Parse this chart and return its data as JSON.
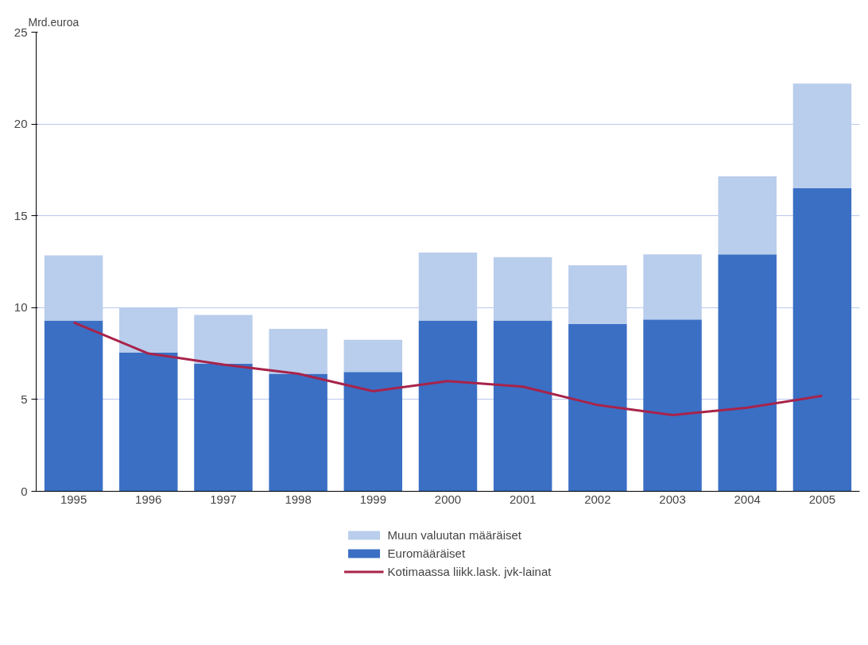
{
  "chart_data": {
    "type": "bar",
    "stacked": true,
    "ylabel": "Mrd.euroa",
    "categories": [
      "1995",
      "1996",
      "1997",
      "1998",
      "1999",
      "2000",
      "2001",
      "2002",
      "2003",
      "2004",
      "2005"
    ],
    "series": [
      {
        "name": "Euromääräiset",
        "color": "#3a6fc4",
        "values": [
          9.3,
          7.55,
          6.95,
          6.4,
          6.5,
          9.3,
          9.3,
          9.1,
          9.35,
          12.9,
          16.5
        ]
      },
      {
        "name": "Muun valuutan määräiset",
        "color": "#b9cdec",
        "values": [
          3.55,
          2.45,
          2.65,
          2.45,
          1.75,
          3.7,
          3.45,
          3.2,
          3.55,
          4.25,
          5.7
        ]
      },
      {
        "name": "Kotimaassa liikk.lask. jvk-lainat",
        "color": "#a8234a",
        "type": "line",
        "values": [
          9.2,
          7.5,
          6.9,
          6.4,
          5.45,
          6.0,
          5.7,
          4.7,
          4.15,
          4.55,
          5.2
        ]
      }
    ],
    "ylim": [
      0,
      25
    ],
    "yticks": [
      0,
      5,
      10,
      15,
      20,
      25
    ],
    "grid": "y",
    "legend": "bottom"
  }
}
